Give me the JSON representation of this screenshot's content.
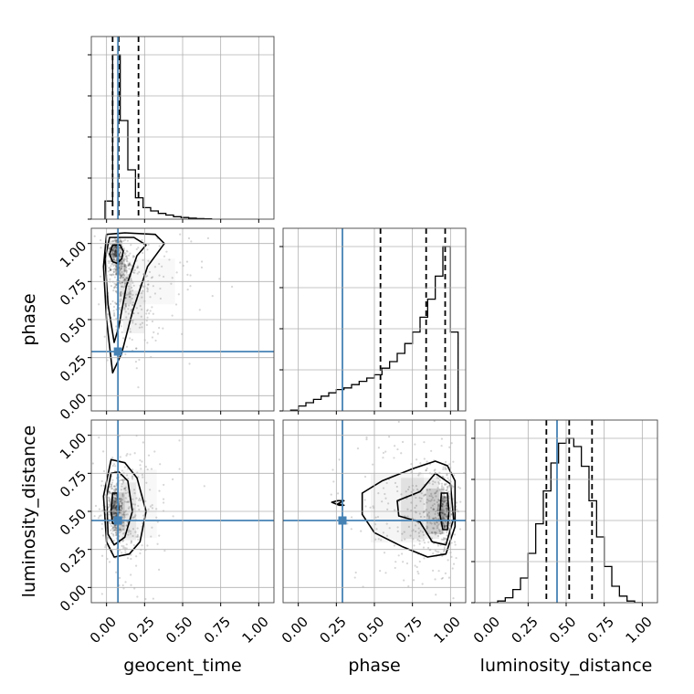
{
  "chart_data": {
    "type": "corner",
    "parameters": [
      "geocent_time",
      "phase",
      "luminosity_distance"
    ],
    "axis_labels": {
      "x": [
        "geocent_time",
        "phase",
        "luminosity_distance"
      ],
      "y": [
        "phase",
        "luminosity_distance"
      ]
    },
    "lim": [
      [
        -0.1,
        1.1
      ],
      [
        -0.1,
        1.1
      ],
      [
        -0.1,
        1.1
      ]
    ],
    "ticks": [
      0.0,
      0.25,
      0.5,
      0.75,
      1.0
    ],
    "tick_labels": [
      "0.00",
      "0.25",
      "0.50",
      "0.75",
      "1.00"
    ],
    "grid": true,
    "truth_color": "#4682b4",
    "truths": [
      0.075,
      0.29,
      0.44
    ],
    "quantiles": [
      [
        0.04,
        0.08,
        0.21
      ],
      [
        0.54,
        0.84,
        0.965
      ],
      [
        0.37,
        0.52,
        0.67
      ]
    ],
    "histograms": [
      {
        "parameter": "geocent_time",
        "bin_edges": [
          -0.01,
          0.04,
          0.09,
          0.14,
          0.19,
          0.24,
          0.29,
          0.34,
          0.39,
          0.44,
          0.49,
          0.54,
          0.59,
          0.64,
          0.69
        ],
        "counts": [
          0.11,
          1.0,
          0.6,
          0.3,
          0.13,
          0.07,
          0.05,
          0.035,
          0.025,
          0.015,
          0.01,
          0.006,
          0.003,
          0.002
        ]
      },
      {
        "parameter": "phase",
        "bin_edges": [
          -0.05,
          0.0,
          0.05,
          0.1,
          0.15,
          0.2,
          0.25,
          0.3,
          0.35,
          0.4,
          0.45,
          0.5,
          0.55,
          0.6,
          0.65,
          0.7,
          0.75,
          0.8,
          0.85,
          0.9,
          0.95,
          1.0,
          1.05
        ],
        "counts": [
          0.005,
          0.03,
          0.05,
          0.07,
          0.09,
          0.11,
          0.13,
          0.14,
          0.16,
          0.18,
          0.2,
          0.22,
          0.26,
          0.3,
          0.35,
          0.41,
          0.48,
          0.57,
          0.68,
          0.82,
          1.0,
          0.48
        ]
      },
      {
        "parameter": "luminosity_distance",
        "bin_edges": [
          0.0,
          0.05,
          0.1,
          0.15,
          0.2,
          0.25,
          0.3,
          0.35,
          0.4,
          0.45,
          0.5,
          0.55,
          0.6,
          0.65,
          0.7,
          0.75,
          0.8,
          0.85,
          0.9,
          0.95,
          1.0
        ],
        "counts": [
          0.0,
          0.01,
          0.03,
          0.08,
          0.15,
          0.3,
          0.48,
          0.68,
          0.85,
          0.97,
          1.0,
          0.95,
          0.83,
          0.62,
          0.4,
          0.22,
          0.1,
          0.04,
          0.01,
          0.0
        ]
      }
    ],
    "scatter_2d": [
      {
        "x": "geocent_time",
        "y": "phase",
        "density": [
          {
            "center": [
              0.06,
              0.95
            ],
            "size": [
              0.04,
              0.08
            ],
            "weight": 1.0
          },
          {
            "center": [
              0.09,
              0.85
            ],
            "size": [
              0.06,
              0.12
            ],
            "weight": 0.7
          },
          {
            "center": [
              0.12,
              0.7
            ],
            "size": [
              0.09,
              0.2
            ],
            "weight": 0.45
          },
          {
            "center": [
              0.18,
              0.55
            ],
            "size": [
              0.14,
              0.28
            ],
            "weight": 0.25
          },
          {
            "center": [
              0.3,
              0.75
            ],
            "size": [
              0.3,
              0.3
            ],
            "weight": 0.12
          }
        ],
        "contours": [
          [
            [
              0.04,
              0.99
            ],
            [
              0.02,
              0.93
            ],
            [
              0.04,
              0.88
            ],
            [
              0.07,
              0.87
            ],
            [
              0.1,
              0.9
            ],
            [
              0.11,
              0.95
            ],
            [
              0.09,
              0.99
            ]
          ],
          [
            [
              0.02,
              1.04
            ],
            [
              -0.01,
              0.9
            ],
            [
              0.01,
              0.6
            ],
            [
              0.05,
              0.35
            ],
            [
              0.08,
              0.45
            ],
            [
              0.13,
              0.72
            ],
            [
              0.2,
              0.92
            ],
            [
              0.26,
              0.99
            ],
            [
              0.18,
              1.04
            ]
          ],
          [
            [
              0.0,
              1.06
            ],
            [
              -0.02,
              0.85
            ],
            [
              0.0,
              0.5
            ],
            [
              0.04,
              0.15
            ],
            [
              0.1,
              0.28
            ],
            [
              0.17,
              0.55
            ],
            [
              0.27,
              0.85
            ],
            [
              0.38,
              1.0
            ],
            [
              0.32,
              1.06
            ],
            [
              0.12,
              1.07
            ]
          ]
        ]
      },
      {
        "x": "geocent_time",
        "y": "luminosity_distance",
        "density": [
          {
            "center": [
              0.05,
              0.52
            ],
            "size": [
              0.04,
              0.15
            ],
            "weight": 1.0
          },
          {
            "center": [
              0.08,
              0.5
            ],
            "size": [
              0.08,
              0.25
            ],
            "weight": 0.6
          },
          {
            "center": [
              0.13,
              0.5
            ],
            "size": [
              0.13,
              0.38
            ],
            "weight": 0.3
          },
          {
            "center": [
              0.22,
              0.55
            ],
            "size": [
              0.22,
              0.45
            ],
            "weight": 0.12
          }
        ],
        "contours": [
          [
            [
              0.04,
              0.62
            ],
            [
              0.03,
              0.5
            ],
            [
              0.04,
              0.42
            ],
            [
              0.07,
              0.42
            ],
            [
              0.08,
              0.52
            ],
            [
              0.07,
              0.62
            ]
          ],
          [
            [
              0.03,
              0.75
            ],
            [
              0.0,
              0.6
            ],
            [
              0.01,
              0.35
            ],
            [
              0.05,
              0.28
            ],
            [
              0.12,
              0.33
            ],
            [
              0.17,
              0.5
            ],
            [
              0.14,
              0.7
            ],
            [
              0.08,
              0.76
            ]
          ],
          [
            [
              0.03,
              0.84
            ],
            [
              -0.02,
              0.6
            ],
            [
              0.0,
              0.3
            ],
            [
              0.05,
              0.2
            ],
            [
              0.15,
              0.22
            ],
            [
              0.22,
              0.3
            ],
            [
              0.26,
              0.5
            ],
            [
              0.2,
              0.72
            ],
            [
              0.12,
              0.82
            ]
          ]
        ]
      },
      {
        "x": "phase",
        "y": "luminosity_distance",
        "density": [
          {
            "center": [
              0.96,
              0.5
            ],
            "size": [
              0.05,
              0.2
            ],
            "weight": 1.0
          },
          {
            "center": [
              0.9,
              0.5
            ],
            "size": [
              0.12,
              0.3
            ],
            "weight": 0.6
          },
          {
            "center": [
              0.8,
              0.52
            ],
            "size": [
              0.25,
              0.4
            ],
            "weight": 0.35
          },
          {
            "center": [
              0.65,
              0.52
            ],
            "size": [
              0.35,
              0.45
            ],
            "weight": 0.18
          }
        ],
        "contours": [
          [
            [
              0.94,
              0.62
            ],
            [
              0.93,
              0.48
            ],
            [
              0.95,
              0.38
            ],
            [
              0.98,
              0.38
            ],
            [
              0.99,
              0.5
            ],
            [
              0.98,
              0.62
            ]
          ],
          [
            [
              0.9,
              0.75
            ],
            [
              0.8,
              0.63
            ],
            [
              0.65,
              0.57
            ],
            [
              0.66,
              0.47
            ],
            [
              0.8,
              0.43
            ],
            [
              0.88,
              0.3
            ],
            [
              0.97,
              0.28
            ],
            [
              1.02,
              0.45
            ],
            [
              1.0,
              0.68
            ]
          ],
          [
            [
              0.9,
              0.83
            ],
            [
              0.75,
              0.78
            ],
            [
              0.55,
              0.7
            ],
            [
              0.42,
              0.62
            ],
            [
              0.42,
              0.48
            ],
            [
              0.5,
              0.36
            ],
            [
              0.68,
              0.27
            ],
            [
              0.85,
              0.2
            ],
            [
              0.97,
              0.22
            ],
            [
              1.03,
              0.4
            ],
            [
              1.03,
              0.7
            ],
            [
              0.98,
              0.8
            ]
          ],
          [
            [
              0.22,
              0.56
            ],
            [
              0.27,
              0.54
            ],
            [
              0.3,
              0.54
            ],
            [
              0.26,
              0.55
            ],
            [
              0.3,
              0.57
            ],
            [
              0.26,
              0.57
            ]
          ]
        ]
      }
    ]
  }
}
